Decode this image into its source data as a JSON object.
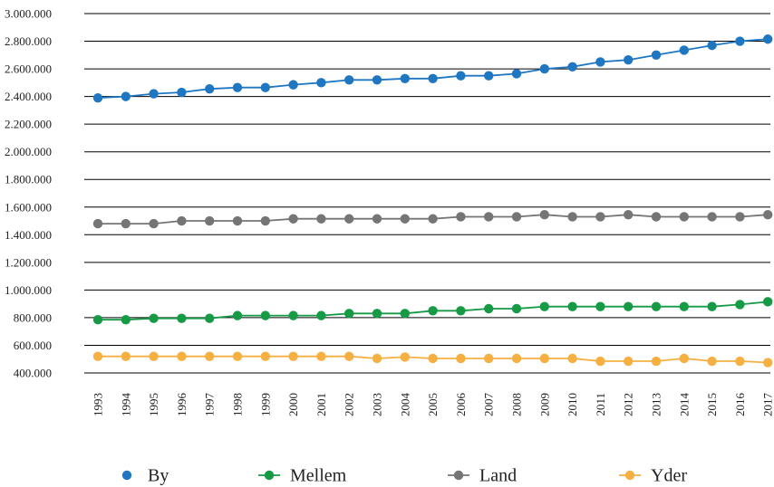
{
  "chart_data": {
    "type": "line",
    "title": "",
    "xlabel": "",
    "ylabel": "",
    "ylim": [
      400000,
      3000000
    ],
    "yticks": [
      400000,
      600000,
      800000,
      1000000,
      1200000,
      1400000,
      1600000,
      1800000,
      2000000,
      2200000,
      2400000,
      2600000,
      2800000,
      3000000
    ],
    "ytick_labels": [
      "400.000",
      "600.000",
      "800.000",
      "1.000.000",
      "1.200.000",
      "1.400.000",
      "1.600.000",
      "1.800.000",
      "2.000.000",
      "2.200.000",
      "2.400.000",
      "2.600.000",
      "2.800.000",
      "3.000.000"
    ],
    "x": [
      "1993",
      "1994",
      "1995",
      "1996",
      "1997",
      "1998",
      "1999",
      "2000",
      "2001",
      "2002",
      "2003",
      "2004",
      "2005",
      "2006",
      "2007",
      "2008",
      "2009",
      "2010",
      "2011",
      "2012",
      "2013",
      "2014",
      "2015",
      "2016",
      "2017"
    ],
    "grid": true,
    "legend_position": "bottom",
    "series": [
      {
        "name": "By",
        "color": "#1f77c2",
        "show_line_in_legend": false,
        "values": [
          2390000,
          2400000,
          2420000,
          2430000,
          2455000,
          2465000,
          2465000,
          2485000,
          2500000,
          2520000,
          2520000,
          2530000,
          2530000,
          2550000,
          2550000,
          2565000,
          2600000,
          2615000,
          2650000,
          2665000,
          2700000,
          2735000,
          2770000,
          2800000,
          2815000
        ]
      },
      {
        "name": "Mellem",
        "color": "#169a45",
        "show_line_in_legend": true,
        "values": [
          785000,
          785000,
          795000,
          795000,
          795000,
          815000,
          815000,
          815000,
          815000,
          830000,
          830000,
          830000,
          850000,
          850000,
          865000,
          865000,
          880000,
          880000,
          880000,
          880000,
          880000,
          880000,
          880000,
          895000,
          915000
        ]
      },
      {
        "name": "Land",
        "color": "#757575",
        "show_line_in_legend": true,
        "values": [
          1480000,
          1480000,
          1480000,
          1500000,
          1500000,
          1500000,
          1500000,
          1515000,
          1515000,
          1515000,
          1515000,
          1515000,
          1515000,
          1530000,
          1530000,
          1530000,
          1545000,
          1530000,
          1530000,
          1545000,
          1530000,
          1530000,
          1530000,
          1530000,
          1545000
        ]
      },
      {
        "name": "Yder",
        "color": "#f6b042",
        "show_line_in_legend": true,
        "values": [
          520000,
          520000,
          520000,
          520000,
          520000,
          520000,
          520000,
          520000,
          520000,
          520000,
          505000,
          515000,
          505000,
          505000,
          505000,
          505000,
          505000,
          505000,
          485000,
          485000,
          485000,
          505000,
          485000,
          485000,
          475000
        ]
      }
    ]
  }
}
